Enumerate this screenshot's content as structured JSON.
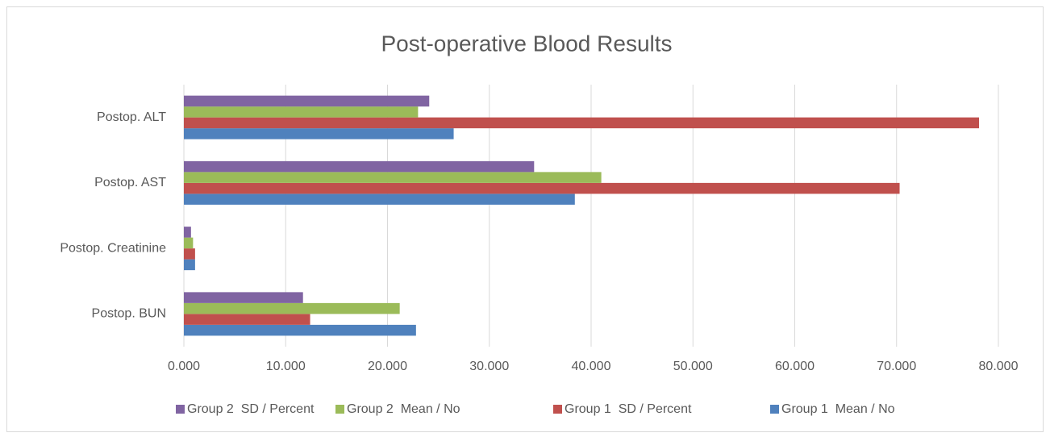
{
  "chart_data": {
    "type": "bar",
    "orientation": "horizontal",
    "title": "Post-operative Blood Results",
    "categories": [
      "Postop. ALT",
      "Postop. AST",
      "Postop. Creatinine",
      "Postop. BUN"
    ],
    "series": [
      {
        "name": "Group 1  Mean / No",
        "color": "#4f81bd",
        "values": [
          26.5,
          38.4,
          1.1,
          22.8
        ]
      },
      {
        "name": "Group 1  SD / Percent",
        "color": "#c0504d",
        "values": [
          78.1,
          70.3,
          1.1,
          12.4
        ]
      },
      {
        "name": "Group 2  Mean / No",
        "color": "#9bbb59",
        "values": [
          23.0,
          41.0,
          0.9,
          21.2
        ]
      },
      {
        "name": "Group 2  SD / Percent",
        "color": "#8064a2",
        "values": [
          24.1,
          34.4,
          0.7,
          11.7
        ]
      }
    ],
    "xlim": [
      0,
      80
    ],
    "xticks": [
      {
        "value": 0,
        "label": "0.000"
      },
      {
        "value": 10,
        "label": "10.000"
      },
      {
        "value": 20,
        "label": "20.000"
      },
      {
        "value": 30,
        "label": "30.000"
      },
      {
        "value": 40,
        "label": "40.000"
      },
      {
        "value": 50,
        "label": "50.000"
      },
      {
        "value": 60,
        "label": "60.000"
      },
      {
        "value": 70,
        "label": "70.000"
      },
      {
        "value": 80,
        "label": "80.000"
      }
    ],
    "grid": true,
    "legend": "bottom"
  }
}
